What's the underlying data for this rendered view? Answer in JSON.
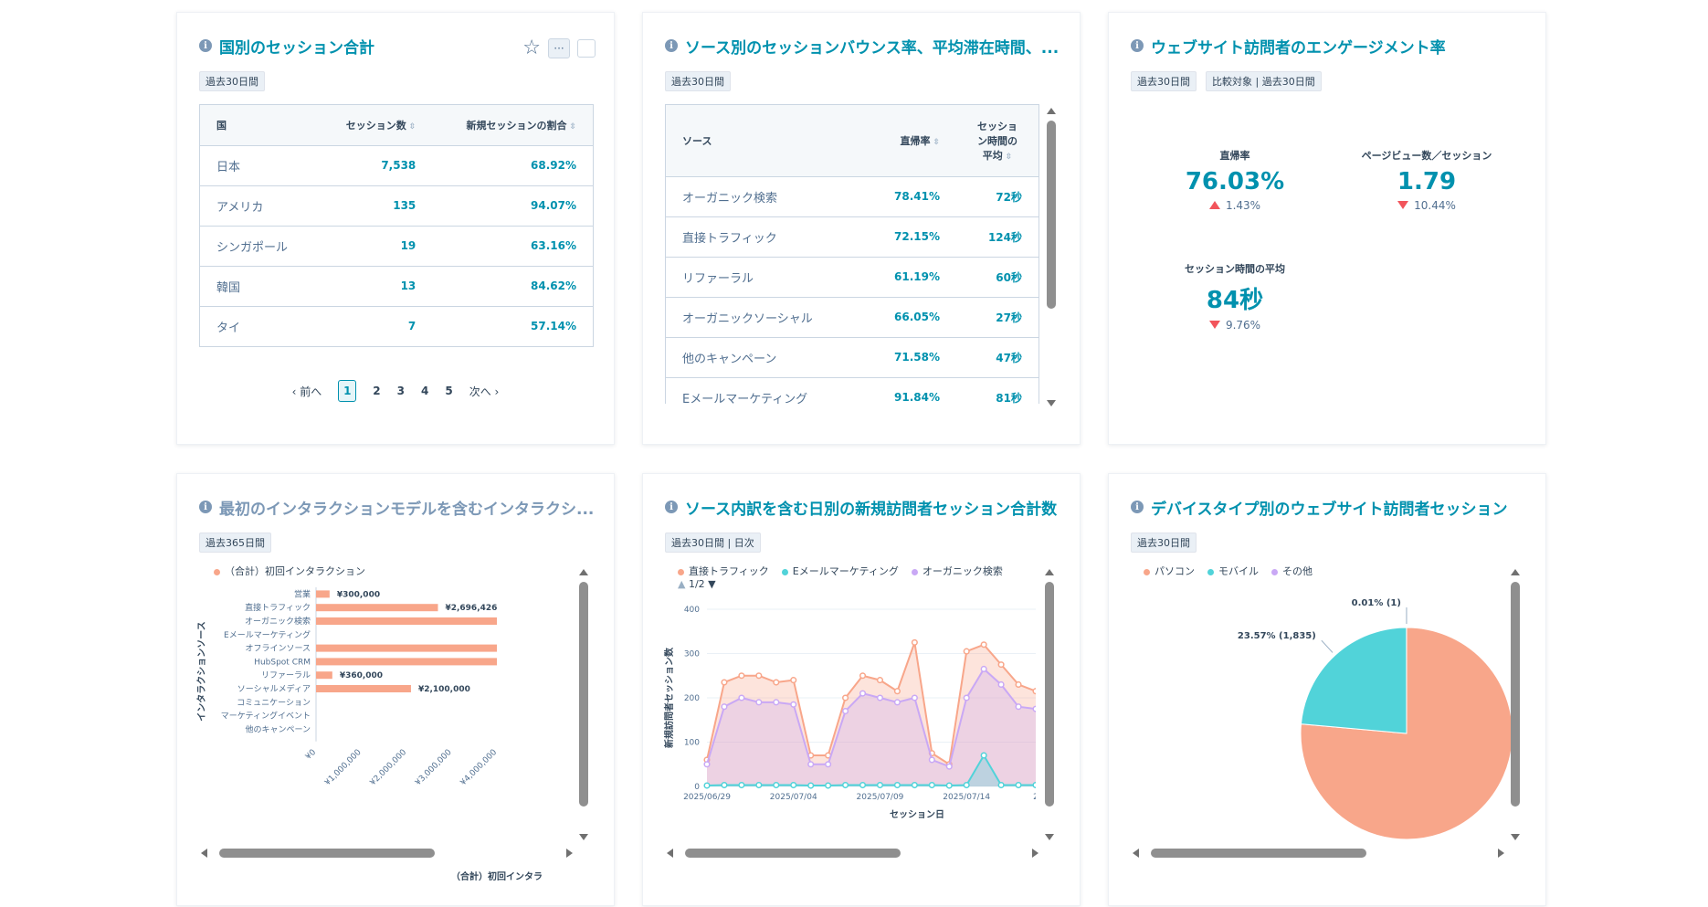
{
  "colors": {
    "accent": "#0091ae",
    "salmon": "#f8a68a",
    "teal": "#51d3d9",
    "purple": "#c9a8f5",
    "red": "#f2545b"
  },
  "card1": {
    "title": "国別のセッション合計",
    "tag": "過去30日間",
    "columns": [
      "国",
      "セッション数",
      "新規セッションの割合"
    ],
    "rows": [
      [
        "日本",
        "7,538",
        "68.92%"
      ],
      [
        "アメリカ",
        "135",
        "94.07%"
      ],
      [
        "シンガポール",
        "19",
        "63.16%"
      ],
      [
        "韓国",
        "13",
        "84.62%"
      ],
      [
        "タイ",
        "7",
        "57.14%"
      ]
    ],
    "pager": {
      "prev": "前へ",
      "next": "次へ",
      "pages": [
        "1",
        "2",
        "3",
        "4",
        "5"
      ],
      "current": "1"
    }
  },
  "card2": {
    "title": "ソース別のセッションバウンス率、平均滞在時間、...",
    "tag": "過去30日間",
    "columns": [
      "ソース",
      "直帰率",
      "セッション時間の平均"
    ],
    "rows": [
      [
        "オーガニック検索",
        "78.41%",
        "72秒"
      ],
      [
        "直接トラフィック",
        "72.15%",
        "124秒"
      ],
      [
        "リファーラル",
        "61.19%",
        "60秒"
      ],
      [
        "オーガニックソーシャル",
        "66.05%",
        "27秒"
      ],
      [
        "他のキャンペーン",
        "71.58%",
        "47秒"
      ],
      [
        "Eメールマーケティング",
        "91.84%",
        "81秒"
      ]
    ]
  },
  "card3": {
    "title": "ウェブサイト訪問者のエンゲージメント率",
    "tags": [
      "過去30日間",
      "比較対象 | 過去30日間"
    ],
    "kpis": [
      {
        "label": "直帰率",
        "value": "76.03%",
        "delta": "1.43%",
        "direction": "up"
      },
      {
        "label": "ページビュー数／セッション",
        "value": "1.79",
        "delta": "10.44%",
        "direction": "down"
      },
      {
        "label": "セッション時間の平均",
        "value": "84秒",
        "delta": "9.76%",
        "direction": "down"
      }
    ]
  },
  "card4": {
    "title": "最初のインタラクションモデルを含むインタラクシ...",
    "tag": "過去365日間",
    "chart_data": {
      "type": "bar",
      "orientation": "horizontal",
      "legend": [
        "（合計）初回インタラクション"
      ],
      "ylabel": "インタラクションソース",
      "xlabel": "（合計）初回インタラ",
      "categories": [
        "営業",
        "直接トラフィック",
        "オーガニック検索",
        "Eメールマーケティング",
        "オフラインソース",
        "HubSpot CRM",
        "リファーラル",
        "ソーシャルメディア",
        "コミュニケーション",
        "マーケティングイベント",
        "他のキャンペーン"
      ],
      "values": [
        300000,
        2696426,
        4000000,
        0,
        4000000,
        4000000,
        360000,
        2100000,
        0,
        0,
        0
      ],
      "data_labels": [
        "¥300,000",
        "¥2,696,426",
        "",
        "",
        "",
        "",
        "¥360,000",
        "¥2,100,000",
        "",
        "",
        ""
      ],
      "xticks": [
        "¥0",
        "¥1,000,000",
        "¥2,000,000",
        "¥3,000,000",
        "¥4,000,000"
      ],
      "xlim": [
        0,
        4000000
      ]
    }
  },
  "card5": {
    "title": "ソース内訳を含む日別の新規訪問者セッション合計数",
    "tag": "過去30日間 | 日次",
    "legend_page": "1/2",
    "chart_data": {
      "type": "area",
      "ylabel": "新規訪問者セッション数",
      "xlabel": "セッション日",
      "ylim": [
        0,
        400
      ],
      "yticks": [
        "0",
        "100",
        "200",
        "300",
        "400"
      ],
      "xticks": [
        "2025/06/29",
        "2025/07/04",
        "2025/07/09",
        "2025/07/14",
        "2"
      ],
      "series": [
        {
          "name": "直接トラフィック",
          "color": "#f8a68a",
          "values": [
            60,
            235,
            250,
            250,
            235,
            240,
            70,
            70,
            200,
            250,
            240,
            215,
            325,
            75,
            50,
            305,
            320,
            275,
            230,
            215
          ]
        },
        {
          "name": "Eメールマーケティング",
          "color": "#51d3d9",
          "values": [
            2,
            3,
            3,
            3,
            3,
            3,
            2,
            2,
            3,
            3,
            3,
            3,
            3,
            3,
            2,
            3,
            70,
            3,
            3,
            3
          ]
        },
        {
          "name": "オーガニック検索",
          "color": "#c9a8f5",
          "values": [
            50,
            180,
            200,
            190,
            190,
            185,
            50,
            50,
            170,
            210,
            200,
            190,
            200,
            60,
            45,
            200,
            265,
            230,
            180,
            175
          ]
        }
      ]
    }
  },
  "card6": {
    "title": "デバイスタイプ別のウェブサイト訪問者セッション",
    "tag": "過去30日間",
    "chart_data": {
      "type": "pie",
      "legend": [
        "パソコン",
        "モバイル",
        "その他"
      ],
      "slices": [
        {
          "name": "パソコン",
          "value": 76.42,
          "color": "#f8a68a"
        },
        {
          "name": "モバイル",
          "value": 23.57,
          "color": "#51d3d9",
          "label": "23.57% (1,835)"
        },
        {
          "name": "その他",
          "value": 0.01,
          "color": "#c9a8f5",
          "label": "0.01% (1)"
        }
      ]
    }
  }
}
